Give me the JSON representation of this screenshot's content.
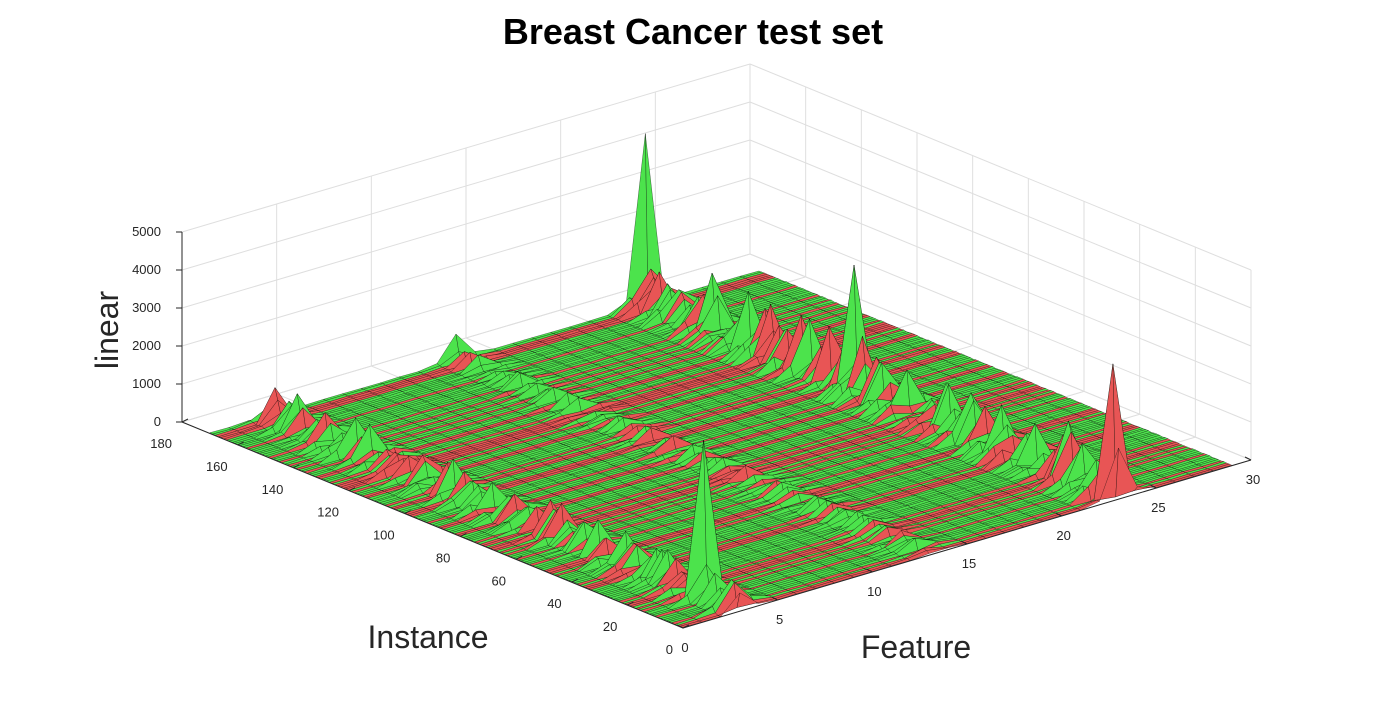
{
  "chart_data": {
    "type": "surface",
    "title": "Breast Cancer test set",
    "xlabel": "Feature",
    "ylabel": "Instance",
    "zlabel": "linear",
    "xlim": [
      0,
      30
    ],
    "ylim": [
      0,
      180
    ],
    "zlim": [
      0,
      5000
    ],
    "x_ticks": [
      0,
      5,
      10,
      15,
      20,
      25,
      30
    ],
    "y_ticks": [
      0,
      20,
      40,
      60,
      80,
      100,
      120,
      140,
      160,
      180
    ],
    "z_ticks": [
      0,
      1000,
      2000,
      3000,
      4000,
      5000
    ],
    "grid": true,
    "colors": {
      "positive_class": "#4ce34c",
      "negative_class": "#e85555",
      "edge": "#000000",
      "grid": "#dedede",
      "axis": "#262626"
    },
    "n_features": 30,
    "n_instances": 171,
    "feature_peaks": [
      {
        "feature": 3,
        "typical": 600,
        "max": 4100,
        "max_instance": 13,
        "class_of_max": "positive"
      },
      {
        "feature": 13,
        "typical": 250,
        "max": 700,
        "max_instance": 170,
        "class_of_max": "positive"
      },
      {
        "feature": 23,
        "typical": 1000,
        "max": 3500,
        "max_instance": 2,
        "class_of_max": "negative"
      },
      {
        "feature": 23,
        "typical": 1000,
        "max": 3300,
        "max_instance": 95,
        "class_of_max": "positive"
      },
      {
        "feature": 23,
        "typical": 1000,
        "max": 4500,
        "max_instance": 170,
        "class_of_max": "positive"
      }
    ]
  }
}
